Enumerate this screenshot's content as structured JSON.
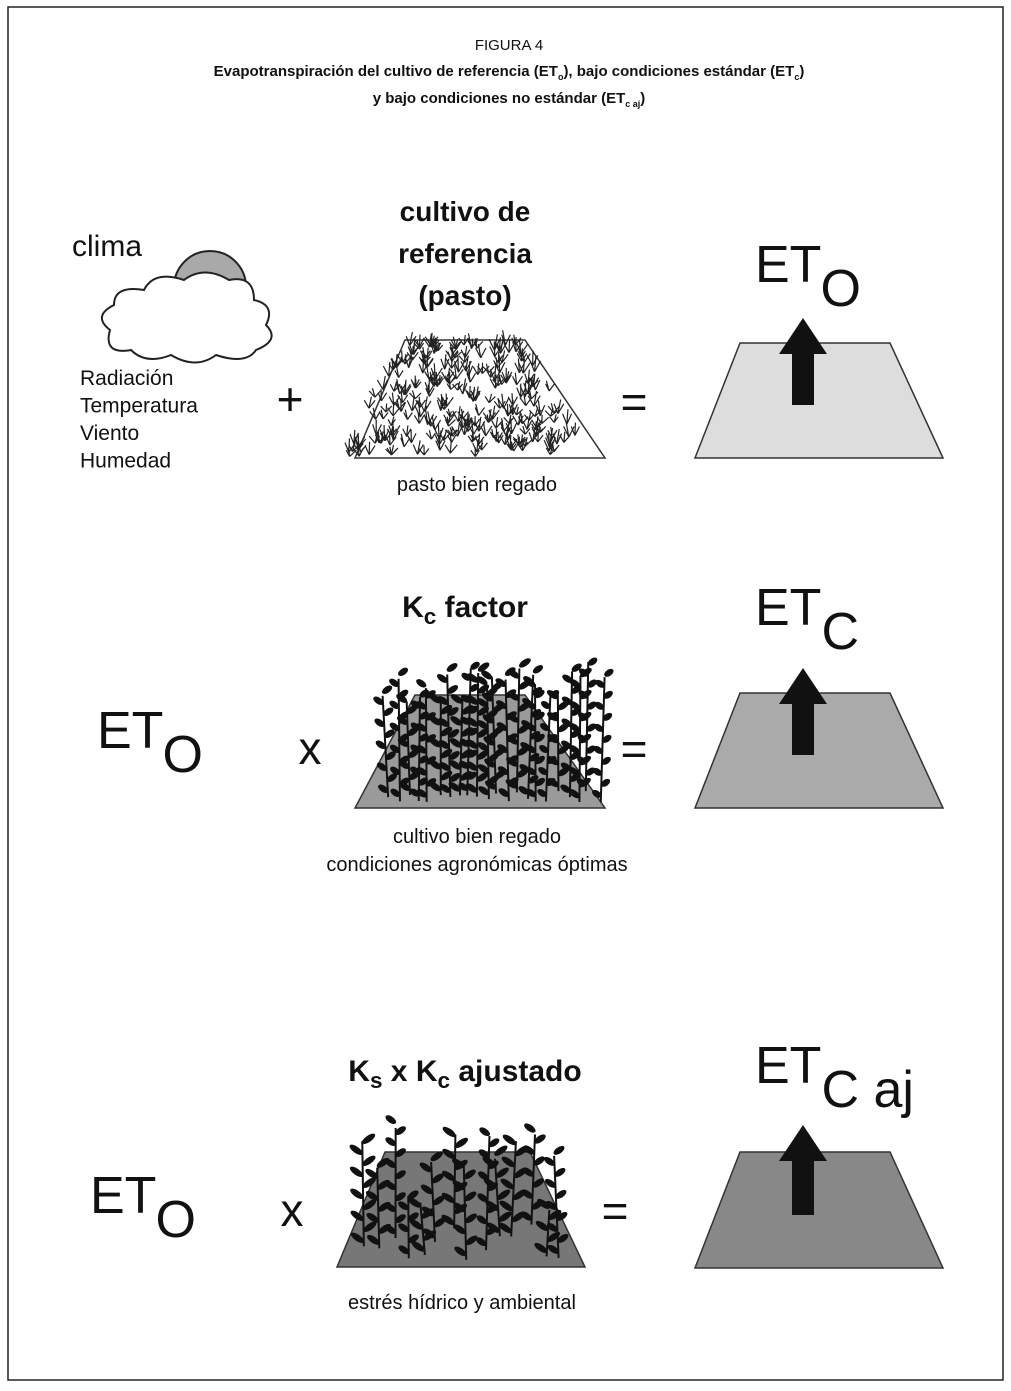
{
  "header": {
    "label": "FIGURA 4",
    "lines": [
      [
        {
          "text": "Evapotranspiración del cultivo de referencia (ET",
          "sub": "o"
        },
        {
          "text": "), bajo condiciones estándar (ET",
          "sub": "c"
        },
        {
          "text": ")"
        }
      ],
      [
        {
          "text": "y bajo condiciones no estándar (ET",
          "sub": "c aj"
        },
        {
          "text": ")"
        }
      ]
    ]
  },
  "row1": {
    "climate": "clima",
    "factors": [
      "Radiación",
      "Temperatura",
      "Viento",
      "Humedad"
    ],
    "operator": "+",
    "heading": [
      "cultivo de",
      "referencia",
      "(pasto)"
    ],
    "caption": [
      "pasto bien regado"
    ],
    "equals": "=",
    "result": [
      {
        "text": "ET",
        "sub": "O"
      }
    ]
  },
  "row2": {
    "input": [
      {
        "text": "ET",
        "sub": "O"
      }
    ],
    "operator": "x",
    "heading": [
      {
        "text": "K",
        "sub": "c"
      },
      {
        "text": " factor"
      }
    ],
    "caption": [
      "cultivo bien regado",
      "condiciones agronómicas óptimas"
    ],
    "equals": "=",
    "result": [
      {
        "text": "ET",
        "sub": "C"
      }
    ]
  },
  "row3": {
    "input": [
      {
        "text": "ET",
        "sub": "O"
      }
    ],
    "operator": "x",
    "heading": [
      {
        "text": "K",
        "sub": "s"
      },
      {
        "text": " x K",
        "sub": "c"
      },
      {
        "text": " ajustado"
      }
    ],
    "caption": [
      "estrés hídrico y ambiental"
    ],
    "equals": "=",
    "result": [
      {
        "text": "ET",
        "sub": "C aj"
      }
    ]
  }
}
